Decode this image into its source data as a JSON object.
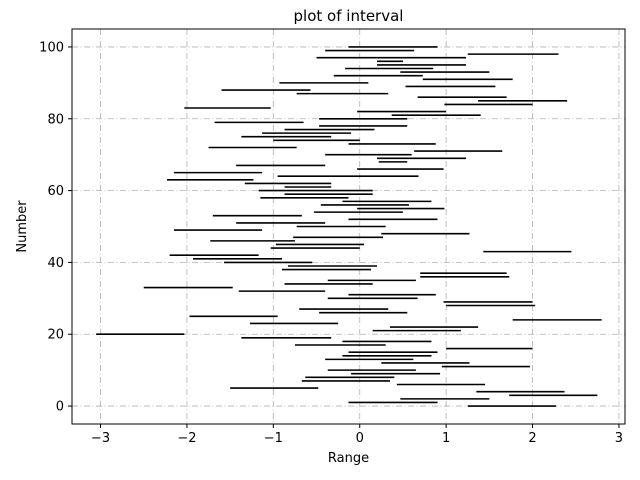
{
  "chart_data": {
    "type": "interval",
    "title": "plot of interval",
    "xlabel": "Range",
    "ylabel": "Number",
    "xlim": [
      -3.33,
      3.07
    ],
    "ylim": [
      -5,
      105
    ],
    "xticks": [
      -3,
      -2,
      -1,
      0,
      1,
      2,
      3
    ],
    "yticks": [
      0,
      20,
      40,
      60,
      80,
      100
    ],
    "grid": true,
    "grid_style": "dashdot",
    "colors": {
      "bar": "#000000",
      "grid": "#b0b0b0",
      "axes": "#000000"
    },
    "intervals": [
      {
        "y": 0,
        "start": 1.25,
        "end": 2.27
      },
      {
        "y": 1,
        "start": -0.13,
        "end": 0.9
      },
      {
        "y": 2,
        "start": 0.47,
        "end": 1.5
      },
      {
        "y": 3,
        "start": 1.73,
        "end": 2.75
      },
      {
        "y": 4,
        "start": 1.35,
        "end": 2.37
      },
      {
        "y": 5,
        "start": -1.5,
        "end": -0.48
      },
      {
        "y": 6,
        "start": 0.43,
        "end": 1.45
      },
      {
        "y": 7,
        "start": -0.67,
        "end": 0.35
      },
      {
        "y": 8,
        "start": -0.63,
        "end": 0.4
      },
      {
        "y": 9,
        "start": -0.1,
        "end": 0.93
      },
      {
        "y": 10,
        "start": -0.37,
        "end": 0.65
      },
      {
        "y": 11,
        "start": 0.95,
        "end": 1.97
      },
      {
        "y": 12,
        "start": 0.25,
        "end": 1.27
      },
      {
        "y": 13,
        "start": -0.4,
        "end": 0.62
      },
      {
        "y": 14,
        "start": -0.2,
        "end": 0.83
      },
      {
        "y": 15,
        "start": -0.13,
        "end": 0.9
      },
      {
        "y": 16,
        "start": 1.0,
        "end": 2.0
      },
      {
        "y": 17,
        "start": -0.75,
        "end": 0.3
      },
      {
        "y": 18,
        "start": -0.2,
        "end": 0.83
      },
      {
        "y": 19,
        "start": -1.37,
        "end": -0.33
      },
      {
        "y": 20,
        "start": -3.05,
        "end": -2.03
      },
      {
        "y": 21,
        "start": 0.15,
        "end": 1.17
      },
      {
        "y": 22,
        "start": 0.35,
        "end": 1.37
      },
      {
        "y": 23,
        "start": -1.27,
        "end": -0.25
      },
      {
        "y": 24,
        "start": 1.77,
        "end": 2.8
      },
      {
        "y": 25,
        "start": -1.97,
        "end": -0.95
      },
      {
        "y": 26,
        "start": -0.47,
        "end": 0.55
      },
      {
        "y": 27,
        "start": -0.7,
        "end": 0.33
      },
      {
        "y": 28,
        "start": 1.0,
        "end": 2.03
      },
      {
        "y": 29,
        "start": 0.97,
        "end": 2.0
      },
      {
        "y": 30,
        "start": -0.37,
        "end": 0.67
      },
      {
        "y": 31,
        "start": -0.13,
        "end": 0.88
      },
      {
        "y": 32,
        "start": -1.4,
        "end": -0.4
      },
      {
        "y": 33,
        "start": -2.5,
        "end": -1.47
      },
      {
        "y": 34,
        "start": -0.87,
        "end": 0.15
      },
      {
        "y": 35,
        "start": -0.37,
        "end": 0.65
      },
      {
        "y": 36,
        "start": 0.7,
        "end": 1.73
      },
      {
        "y": 37,
        "start": 0.7,
        "end": 1.7
      },
      {
        "y": 38,
        "start": -0.9,
        "end": 0.13
      },
      {
        "y": 39,
        "start": -0.83,
        "end": 0.2
      },
      {
        "y": 40,
        "start": -1.57,
        "end": -0.55
      },
      {
        "y": 41,
        "start": -1.93,
        "end": -0.9
      },
      {
        "y": 42,
        "start": -2.2,
        "end": -1.17
      },
      {
        "y": 43,
        "start": 1.43,
        "end": 2.45
      },
      {
        "y": 44,
        "start": -1.03,
        "end": 0.0
      },
      {
        "y": 45,
        "start": -0.97,
        "end": 0.05
      },
      {
        "y": 46,
        "start": -1.73,
        "end": -0.75
      },
      {
        "y": 47,
        "start": -0.77,
        "end": 0.27
      },
      {
        "y": 48,
        "start": 0.25,
        "end": 1.27
      },
      {
        "y": 49,
        "start": -2.15,
        "end": -1.13
      },
      {
        "y": 50,
        "start": -0.73,
        "end": 0.3
      },
      {
        "y": 51,
        "start": -1.43,
        "end": -0.4
      },
      {
        "y": 52,
        "start": -0.13,
        "end": 0.9
      },
      {
        "y": 53,
        "start": -1.7,
        "end": -0.67
      },
      {
        "y": 54,
        "start": -0.53,
        "end": 0.5
      },
      {
        "y": 55,
        "start": -0.03,
        "end": 0.98
      },
      {
        "y": 56,
        "start": -0.45,
        "end": 0.57
      },
      {
        "y": 57,
        "start": -0.2,
        "end": 0.83
      },
      {
        "y": 58,
        "start": -1.15,
        "end": -0.13
      },
      {
        "y": 59,
        "start": -0.87,
        "end": 0.15
      },
      {
        "y": 60,
        "start": -1.17,
        "end": 0.15
      },
      {
        "y": 61,
        "start": -0.87,
        "end": -0.33
      },
      {
        "y": 62,
        "start": -1.33,
        "end": -0.33
      },
      {
        "y": 63,
        "start": -2.23,
        "end": -1.23
      },
      {
        "y": 64,
        "start": -0.95,
        "end": 0.68
      },
      {
        "y": 65,
        "start": -2.15,
        "end": -1.13
      },
      {
        "y": 66,
        "start": -0.03,
        "end": 0.97
      },
      {
        "y": 67,
        "start": -1.43,
        "end": -0.4
      },
      {
        "y": 68,
        "start": 0.22,
        "end": 0.55
      },
      {
        "y": 69,
        "start": 0.2,
        "end": 1.23
      },
      {
        "y": 70,
        "start": -0.4,
        "end": 0.6
      },
      {
        "y": 71,
        "start": 0.63,
        "end": 1.65
      },
      {
        "y": 72,
        "start": -1.75,
        "end": -0.73
      },
      {
        "y": 73,
        "start": -0.13,
        "end": 0.88
      },
      {
        "y": 74,
        "start": -1.0,
        "end": 0.0
      },
      {
        "y": 75,
        "start": -1.37,
        "end": -0.33
      },
      {
        "y": 76,
        "start": -1.13,
        "end": -0.1
      },
      {
        "y": 77,
        "start": -0.87,
        "end": 0.17
      },
      {
        "y": 78,
        "start": -0.47,
        "end": 0.55
      },
      {
        "y": 79,
        "start": -1.68,
        "end": -0.65
      },
      {
        "y": 80,
        "start": -0.47,
        "end": 0.55
      },
      {
        "y": 81,
        "start": 0.37,
        "end": 1.4
      },
      {
        "y": 82,
        "start": -0.03,
        "end": 1.0
      },
      {
        "y": 83,
        "start": -2.03,
        "end": -1.03
      },
      {
        "y": 84,
        "start": 0.98,
        "end": 2.0
      },
      {
        "y": 85,
        "start": 1.37,
        "end": 2.4
      },
      {
        "y": 86,
        "start": 0.67,
        "end": 1.7
      },
      {
        "y": 87,
        "start": -0.73,
        "end": 0.33
      },
      {
        "y": 88,
        "start": -1.6,
        "end": -0.57
      },
      {
        "y": 89,
        "start": 0.53,
        "end": 1.57
      },
      {
        "y": 90,
        "start": -0.93,
        "end": 0.1
      },
      {
        "y": 91,
        "start": 0.73,
        "end": 1.77
      },
      {
        "y": 92,
        "start": -0.3,
        "end": 0.73
      },
      {
        "y": 93,
        "start": 0.47,
        "end": 1.5
      },
      {
        "y": 94,
        "start": -0.17,
        "end": 0.85
      },
      {
        "y": 95,
        "start": 0.2,
        "end": 1.23
      },
      {
        "y": 96,
        "start": 0.2,
        "end": 0.5
      },
      {
        "y": 97,
        "start": -0.5,
        "end": 1.23
      },
      {
        "y": 98,
        "start": 1.25,
        "end": 2.3
      },
      {
        "y": 99,
        "start": -0.4,
        "end": 0.63
      },
      {
        "y": 100,
        "start": -0.13,
        "end": 0.9
      }
    ]
  }
}
